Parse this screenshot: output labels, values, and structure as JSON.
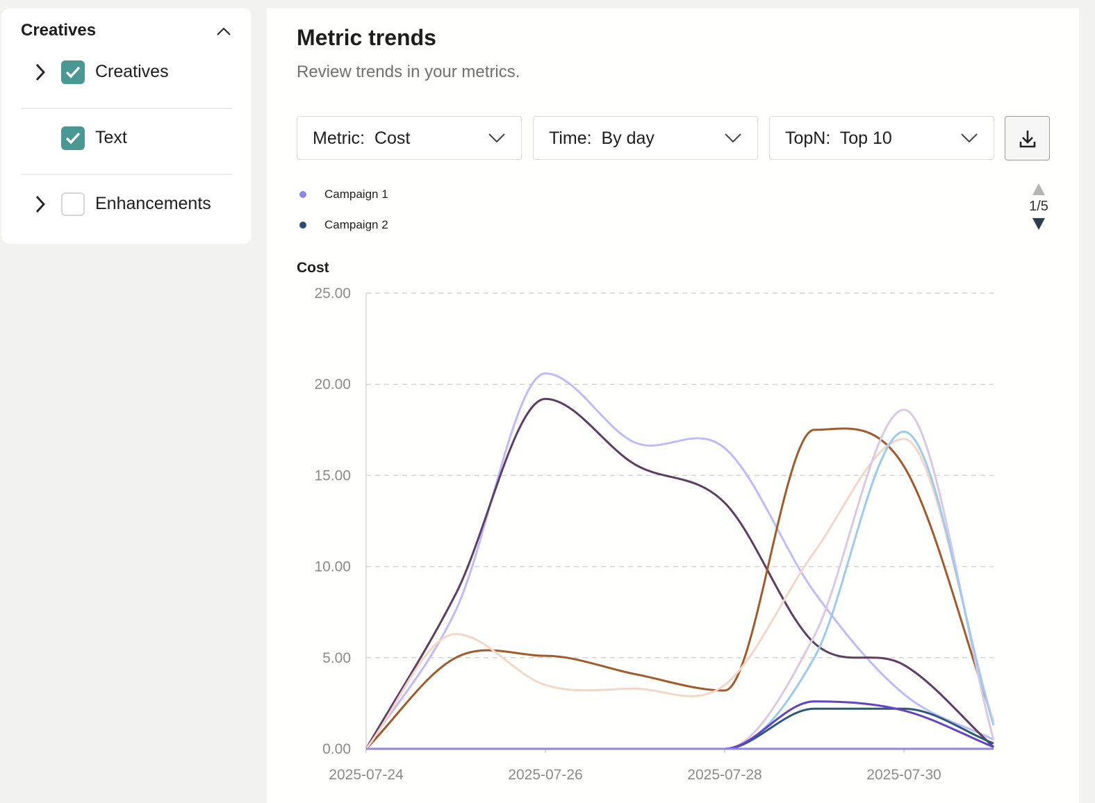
{
  "sidebar": {
    "title": "Creatives",
    "items": [
      {
        "label": "Creatives",
        "checked": true,
        "expandable": true
      },
      {
        "label": "Text",
        "checked": true,
        "expandable": false
      },
      {
        "label": "Enhancements",
        "checked": false,
        "expandable": true
      }
    ],
    "accent": "#4a9894"
  },
  "main": {
    "title": "Metric trends",
    "subtitle": "Review trends in your metrics.",
    "filters": [
      {
        "label": "Metric:  Cost"
      },
      {
        "label": "Time:  By day"
      },
      {
        "label": "TopN:  Top 10"
      }
    ],
    "download_icon": "download-icon",
    "legend": [
      {
        "name": "Campaign 1",
        "color": "#8e84ec"
      },
      {
        "name": "Campaign 2",
        "color": "#2a4d6e"
      }
    ],
    "pager": "1/5"
  },
  "chart_data": {
    "type": "line",
    "ylabel": "Cost",
    "ylim": [
      0,
      25
    ],
    "yticks": [
      "0.00",
      "5.00",
      "10.00",
      "15.00",
      "20.00",
      "25.00"
    ],
    "x": [
      "2025-07-24",
      "2025-07-25",
      "2025-07-26",
      "2025-07-27",
      "2025-07-28",
      "2025-07-29",
      "2025-07-30",
      "2025-07-31"
    ],
    "xticks": [
      "2025-07-24",
      "2025-07-26",
      "2025-07-28",
      "2025-07-30"
    ],
    "grid": "horizontal dashed",
    "smooth": true,
    "series": [
      {
        "values": [
          0,
          7.6,
          20.6,
          16.8,
          16.5,
          8.6,
          3.0,
          0.5
        ],
        "color": "#bdbcf9"
      },
      {
        "values": [
          0,
          8.5,
          19.2,
          15.6,
          13.5,
          5.8,
          4.6,
          0.1
        ],
        "color": "#5e3d63"
      },
      {
        "values": [
          0,
          5.0,
          5.1,
          4.1,
          3.2,
          17.5,
          15.5,
          1.5
        ],
        "color": "#a35a2a"
      },
      {
        "values": [
          0,
          6.3,
          3.5,
          3.3,
          3.5,
          10.8,
          17.0,
          1.5
        ],
        "color": "#f3d6c8"
      },
      {
        "values": [
          0,
          0,
          0,
          0,
          0,
          6.2,
          18.6,
          0.5
        ],
        "color": "#dbc8e3"
      },
      {
        "values": [
          0,
          0,
          0,
          0,
          0,
          5.0,
          17.4,
          1.3
        ],
        "color": "#9ccbef"
      },
      {
        "name": "Campaign 2",
        "values": [
          0,
          0,
          0,
          0,
          0,
          2.2,
          2.2,
          0.3
        ],
        "color": "#2a5a78"
      },
      {
        "values": [
          0,
          0,
          0,
          0,
          0,
          2.6,
          2.1,
          0.1
        ],
        "color": "#6243c6"
      },
      {
        "name": "Campaign 1",
        "values": [
          0,
          0,
          0,
          0,
          0,
          0,
          0,
          0
        ],
        "color": "#8e84ec"
      }
    ]
  }
}
